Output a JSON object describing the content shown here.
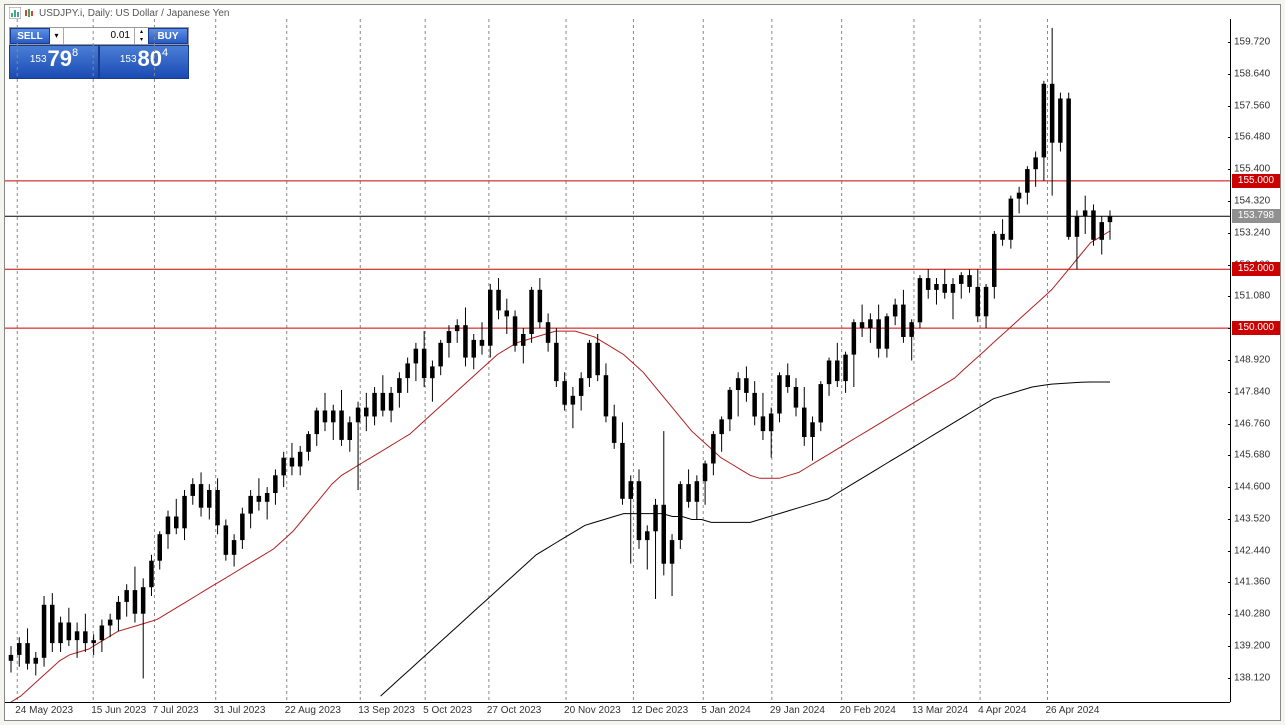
{
  "header": {
    "symbol_text": "USDJPY.i, Daily: US Dollar / Japanese Yen"
  },
  "trade_panel": {
    "sell_label": "SELL",
    "buy_label": "BUY",
    "lot_value": "0.01",
    "sell_price": {
      "whole": "153",
      "main": "79",
      "frac": "8"
    },
    "buy_price": {
      "whole": "153",
      "main": "80",
      "frac": "4"
    }
  },
  "chart": {
    "type": "candlestick",
    "background_color": "#ffffff",
    "axis_color": "#000000",
    "text_color": "#333333",
    "grid_dash": "3,3",
    "grid_color": "#888888",
    "y_min": 137.3,
    "y_max": 160.5,
    "y_ticks": [
      159.72,
      158.64,
      157.56,
      156.48,
      155.4,
      154.32,
      153.24,
      152.16,
      151.08,
      150.0,
      148.92,
      147.84,
      146.76,
      145.68,
      144.6,
      143.52,
      142.44,
      141.36,
      140.28,
      139.2,
      138.12
    ],
    "x_labels": [
      "24 May 2023",
      "15 Jun 2023",
      "7 Jul 2023",
      "31 Jul 2023",
      "22 Aug 2023",
      "13 Sep 2023",
      "5 Oct 2023",
      "27 Oct 2023",
      "20 Nov 2023",
      "12 Dec 2023",
      "5 Jan 2024",
      "29 Jan 2024",
      "20 Feb 2024",
      "13 Mar 2024",
      "4 Apr 2024",
      "26 Apr 2024"
    ],
    "x_positions_pct": [
      1.0,
      7.2,
      12.2,
      17.2,
      23.0,
      29.0,
      34.3,
      39.5,
      45.8,
      51.3,
      57.0,
      62.6,
      68.3,
      74.2,
      79.6,
      85.1
    ],
    "horizontal_lines": [
      {
        "value": 155.0,
        "color": "#cc0000",
        "label": "155.000",
        "label_bg": "#cc0000"
      },
      {
        "value": 152.0,
        "color": "#cc0000",
        "label": "152.000",
        "label_bg": "#cc0000"
      },
      {
        "value": 150.0,
        "color": "#cc0000",
        "label": "150.000",
        "label_bg": "#cc0000"
      }
    ],
    "current_price_line": {
      "value": 153.798,
      "color": "#000000",
      "label": "153.798",
      "label_bg": "#909090"
    },
    "ma_lines": [
      {
        "name": "ma-fast",
        "color": "#b02020",
        "width": 1,
        "points": [
          137.3,
          137.5,
          137.8,
          138.1,
          138.4,
          138.7,
          138.9,
          139.0,
          139.1,
          139.3,
          139.5,
          139.7,
          139.8,
          139.9,
          140.0,
          140.1,
          140.3,
          140.5,
          140.7,
          140.9,
          141.1,
          141.3,
          141.5,
          141.7,
          141.9,
          142.1,
          142.3,
          142.5,
          142.8,
          143.1,
          143.5,
          143.9,
          144.3,
          144.7,
          145.0,
          145.2,
          145.4,
          145.6,
          145.8,
          146.0,
          146.2,
          146.4,
          146.7,
          147.0,
          147.3,
          147.6,
          147.9,
          148.2,
          148.5,
          148.8,
          149.1,
          149.3,
          149.5,
          149.6,
          149.7,
          149.8,
          149.9,
          149.9,
          149.9,
          149.8,
          149.7,
          149.5,
          149.3,
          149.1,
          148.8,
          148.5,
          148.1,
          147.7,
          147.3,
          146.9,
          146.5,
          146.2,
          145.9,
          145.6,
          145.4,
          145.2,
          145.0,
          144.9,
          144.9,
          144.9,
          145.0,
          145.1,
          145.3,
          145.5,
          145.7,
          145.9,
          146.1,
          146.3,
          146.5,
          146.7,
          146.9,
          147.1,
          147.3,
          147.5,
          147.7,
          147.9,
          148.1,
          148.3,
          148.6,
          148.9,
          149.2,
          149.5,
          149.8,
          150.1,
          150.4,
          150.7,
          151.0,
          151.3,
          151.7,
          152.1,
          152.5,
          152.9,
          153.1,
          153.3
        ]
      },
      {
        "name": "ma-slow",
        "color": "#000000",
        "width": 1,
        "points": [
          null,
          null,
          null,
          null,
          null,
          null,
          null,
          null,
          null,
          null,
          null,
          null,
          null,
          null,
          null,
          null,
          null,
          null,
          null,
          null,
          null,
          null,
          null,
          null,
          null,
          null,
          null,
          null,
          null,
          null,
          null,
          null,
          null,
          null,
          null,
          null,
          null,
          null,
          137.5,
          137.8,
          138.1,
          138.4,
          138.7,
          139.0,
          139.3,
          139.6,
          139.9,
          140.2,
          140.5,
          140.8,
          141.1,
          141.4,
          141.7,
          142.0,
          142.3,
          142.5,
          142.7,
          142.9,
          143.1,
          143.3,
          143.4,
          143.5,
          143.6,
          143.7,
          143.7,
          143.7,
          143.7,
          143.7,
          143.6,
          143.6,
          143.5,
          143.5,
          143.4,
          143.4,
          143.4,
          143.4,
          143.4,
          143.5,
          143.6,
          143.7,
          143.8,
          143.9,
          144.0,
          144.1,
          144.2,
          144.4,
          144.6,
          144.8,
          145.0,
          145.2,
          145.4,
          145.6,
          145.8,
          146.0,
          146.2,
          146.4,
          146.6,
          146.8,
          147.0,
          147.2,
          147.4,
          147.6,
          147.7,
          147.8,
          147.9,
          148.0,
          148.05,
          148.1,
          148.12,
          148.14,
          148.16,
          148.17,
          148.17,
          148.17
        ]
      }
    ],
    "candle_color": "#000000",
    "candles": [
      {
        "o": 138.7,
        "h": 139.2,
        "l": 138.3,
        "c": 138.9
      },
      {
        "o": 138.9,
        "h": 139.5,
        "l": 138.5,
        "c": 139.3
      },
      {
        "o": 139.3,
        "h": 139.8,
        "l": 138.4,
        "c": 138.6
      },
      {
        "o": 138.6,
        "h": 139.0,
        "l": 138.2,
        "c": 138.8
      },
      {
        "o": 138.8,
        "h": 140.9,
        "l": 138.5,
        "c": 140.6
      },
      {
        "o": 140.6,
        "h": 141.0,
        "l": 139.0,
        "c": 139.3
      },
      {
        "o": 139.3,
        "h": 140.2,
        "l": 139.0,
        "c": 140.0
      },
      {
        "o": 140.0,
        "h": 140.5,
        "l": 139.2,
        "c": 139.4
      },
      {
        "o": 139.4,
        "h": 140.0,
        "l": 138.8,
        "c": 139.7
      },
      {
        "o": 139.7,
        "h": 140.3,
        "l": 139.0,
        "c": 139.3
      },
      {
        "o": 139.3,
        "h": 139.6,
        "l": 138.9,
        "c": 139.4
      },
      {
        "o": 139.4,
        "h": 140.1,
        "l": 139.0,
        "c": 139.9
      },
      {
        "o": 139.9,
        "h": 140.3,
        "l": 139.5,
        "c": 140.1
      },
      {
        "o": 140.1,
        "h": 140.9,
        "l": 139.7,
        "c": 140.7
      },
      {
        "o": 140.7,
        "h": 141.3,
        "l": 140.2,
        "c": 141.1
      },
      {
        "o": 141.1,
        "h": 141.9,
        "l": 140.0,
        "c": 140.3
      },
      {
        "o": 140.3,
        "h": 141.5,
        "l": 138.1,
        "c": 141.2
      },
      {
        "o": 141.2,
        "h": 142.3,
        "l": 140.9,
        "c": 142.1
      },
      {
        "o": 142.1,
        "h": 143.1,
        "l": 141.8,
        "c": 143.0
      },
      {
        "o": 143.0,
        "h": 143.8,
        "l": 142.5,
        "c": 143.6
      },
      {
        "o": 143.6,
        "h": 144.2,
        "l": 143.0,
        "c": 143.2
      },
      {
        "o": 143.2,
        "h": 144.5,
        "l": 142.8,
        "c": 144.3
      },
      {
        "o": 144.3,
        "h": 144.9,
        "l": 144.0,
        "c": 144.7
      },
      {
        "o": 144.7,
        "h": 145.1,
        "l": 143.6,
        "c": 143.9
      },
      {
        "o": 143.9,
        "h": 144.7,
        "l": 143.5,
        "c": 144.5
      },
      {
        "o": 144.5,
        "h": 144.9,
        "l": 143.0,
        "c": 143.3
      },
      {
        "o": 143.3,
        "h": 143.5,
        "l": 142.1,
        "c": 142.3
      },
      {
        "o": 142.3,
        "h": 143.0,
        "l": 141.9,
        "c": 142.8
      },
      {
        "o": 142.8,
        "h": 143.9,
        "l": 142.5,
        "c": 143.7
      },
      {
        "o": 143.7,
        "h": 144.5,
        "l": 143.2,
        "c": 144.3
      },
      {
        "o": 144.3,
        "h": 144.9,
        "l": 143.8,
        "c": 144.1
      },
      {
        "o": 144.1,
        "h": 144.6,
        "l": 143.5,
        "c": 144.4
      },
      {
        "o": 144.4,
        "h": 145.2,
        "l": 144.0,
        "c": 145.0
      },
      {
        "o": 145.0,
        "h": 145.8,
        "l": 144.6,
        "c": 145.6
      },
      {
        "o": 145.6,
        "h": 146.1,
        "l": 145.0,
        "c": 145.3
      },
      {
        "o": 145.3,
        "h": 146.0,
        "l": 145.0,
        "c": 145.8
      },
      {
        "o": 145.8,
        "h": 146.5,
        "l": 145.5,
        "c": 146.4
      },
      {
        "o": 146.4,
        "h": 147.3,
        "l": 146.0,
        "c": 147.2
      },
      {
        "o": 147.2,
        "h": 147.8,
        "l": 146.5,
        "c": 146.8
      },
      {
        "o": 146.8,
        "h": 147.4,
        "l": 146.2,
        "c": 147.2
      },
      {
        "o": 147.2,
        "h": 147.9,
        "l": 146.0,
        "c": 146.2
      },
      {
        "o": 146.2,
        "h": 147.0,
        "l": 145.8,
        "c": 146.8
      },
      {
        "o": 146.8,
        "h": 147.5,
        "l": 144.5,
        "c": 147.3
      },
      {
        "o": 147.3,
        "h": 147.8,
        "l": 146.5,
        "c": 147.0
      },
      {
        "o": 147.0,
        "h": 148.0,
        "l": 146.7,
        "c": 147.8
      },
      {
        "o": 147.8,
        "h": 148.4,
        "l": 147.0,
        "c": 147.2
      },
      {
        "o": 147.2,
        "h": 148.0,
        "l": 146.8,
        "c": 147.8
      },
      {
        "o": 147.8,
        "h": 148.5,
        "l": 147.3,
        "c": 148.3
      },
      {
        "o": 148.3,
        "h": 149.0,
        "l": 147.8,
        "c": 148.8
      },
      {
        "o": 148.8,
        "h": 149.5,
        "l": 148.2,
        "c": 149.3
      },
      {
        "o": 149.3,
        "h": 149.9,
        "l": 148.0,
        "c": 148.3
      },
      {
        "o": 148.3,
        "h": 148.9,
        "l": 147.5,
        "c": 148.7
      },
      {
        "o": 148.7,
        "h": 149.6,
        "l": 148.4,
        "c": 149.5
      },
      {
        "o": 149.5,
        "h": 150.1,
        "l": 149.0,
        "c": 149.9
      },
      {
        "o": 149.9,
        "h": 150.3,
        "l": 149.5,
        "c": 150.1
      },
      {
        "o": 150.1,
        "h": 150.7,
        "l": 148.7,
        "c": 149.0
      },
      {
        "o": 149.0,
        "h": 149.8,
        "l": 148.6,
        "c": 149.6
      },
      {
        "o": 149.6,
        "h": 150.2,
        "l": 149.1,
        "c": 149.4
      },
      {
        "o": 149.4,
        "h": 151.5,
        "l": 149.0,
        "c": 151.3
      },
      {
        "o": 151.3,
        "h": 151.7,
        "l": 150.3,
        "c": 150.6
      },
      {
        "o": 150.6,
        "h": 151.0,
        "l": 149.8,
        "c": 150.4
      },
      {
        "o": 150.4,
        "h": 150.6,
        "l": 149.2,
        "c": 149.4
      },
      {
        "o": 149.4,
        "h": 150.0,
        "l": 148.8,
        "c": 149.8
      },
      {
        "o": 149.8,
        "h": 151.4,
        "l": 149.5,
        "c": 151.3
      },
      {
        "o": 151.3,
        "h": 151.7,
        "l": 150.0,
        "c": 150.2
      },
      {
        "o": 150.2,
        "h": 150.5,
        "l": 149.2,
        "c": 149.5
      },
      {
        "o": 149.5,
        "h": 150.0,
        "l": 148.0,
        "c": 148.2
      },
      {
        "o": 148.2,
        "h": 148.5,
        "l": 147.2,
        "c": 147.4
      },
      {
        "o": 147.4,
        "h": 148.0,
        "l": 146.6,
        "c": 147.7
      },
      {
        "o": 147.7,
        "h": 148.5,
        "l": 147.2,
        "c": 148.3
      },
      {
        "o": 148.3,
        "h": 149.6,
        "l": 148.0,
        "c": 149.5
      },
      {
        "o": 149.5,
        "h": 149.8,
        "l": 148.2,
        "c": 148.4
      },
      {
        "o": 148.4,
        "h": 148.8,
        "l": 146.8,
        "c": 147.0
      },
      {
        "o": 147.0,
        "h": 147.4,
        "l": 145.9,
        "c": 146.1
      },
      {
        "o": 146.1,
        "h": 146.8,
        "l": 144.0,
        "c": 144.2
      },
      {
        "o": 144.2,
        "h": 145.0,
        "l": 142.0,
        "c": 144.8
      },
      {
        "o": 144.8,
        "h": 145.2,
        "l": 142.5,
        "c": 142.8
      },
      {
        "o": 142.8,
        "h": 143.3,
        "l": 141.8,
        "c": 143.1
      },
      {
        "o": 143.1,
        "h": 144.2,
        "l": 140.8,
        "c": 144.0
      },
      {
        "o": 144.0,
        "h": 146.5,
        "l": 141.6,
        "c": 142.0
      },
      {
        "o": 142.0,
        "h": 143.0,
        "l": 140.9,
        "c": 142.8
      },
      {
        "o": 142.8,
        "h": 144.8,
        "l": 142.5,
        "c": 144.7
      },
      {
        "o": 144.7,
        "h": 145.2,
        "l": 143.9,
        "c": 144.1
      },
      {
        "o": 144.1,
        "h": 145.0,
        "l": 143.5,
        "c": 144.8
      },
      {
        "o": 144.8,
        "h": 145.5,
        "l": 144.0,
        "c": 145.4
      },
      {
        "o": 145.4,
        "h": 146.5,
        "l": 145.0,
        "c": 146.4
      },
      {
        "o": 146.4,
        "h": 147.0,
        "l": 145.8,
        "c": 146.9
      },
      {
        "o": 146.9,
        "h": 148.0,
        "l": 146.5,
        "c": 147.9
      },
      {
        "o": 147.9,
        "h": 148.5,
        "l": 147.0,
        "c": 148.3
      },
      {
        "o": 148.3,
        "h": 148.7,
        "l": 147.5,
        "c": 147.8
      },
      {
        "o": 147.8,
        "h": 148.2,
        "l": 146.7,
        "c": 147.0
      },
      {
        "o": 147.0,
        "h": 147.8,
        "l": 146.2,
        "c": 146.5
      },
      {
        "o": 146.5,
        "h": 147.3,
        "l": 145.6,
        "c": 147.1
      },
      {
        "o": 147.1,
        "h": 148.5,
        "l": 146.8,
        "c": 148.4
      },
      {
        "o": 148.4,
        "h": 148.8,
        "l": 147.8,
        "c": 148.0
      },
      {
        "o": 148.0,
        "h": 148.3,
        "l": 147.0,
        "c": 147.3
      },
      {
        "o": 147.3,
        "h": 148.0,
        "l": 146.0,
        "c": 146.3
      },
      {
        "o": 146.3,
        "h": 147.0,
        "l": 145.5,
        "c": 146.8
      },
      {
        "o": 146.8,
        "h": 148.2,
        "l": 146.5,
        "c": 148.1
      },
      {
        "o": 148.1,
        "h": 149.0,
        "l": 147.7,
        "c": 148.9
      },
      {
        "o": 148.9,
        "h": 149.5,
        "l": 148.0,
        "c": 148.2
      },
      {
        "o": 148.2,
        "h": 149.2,
        "l": 147.8,
        "c": 149.1
      },
      {
        "o": 149.1,
        "h": 150.3,
        "l": 148.0,
        "c": 150.2
      },
      {
        "o": 150.2,
        "h": 150.8,
        "l": 149.7,
        "c": 150.0
      },
      {
        "o": 150.0,
        "h": 150.5,
        "l": 149.5,
        "c": 150.3
      },
      {
        "o": 150.3,
        "h": 150.8,
        "l": 149.0,
        "c": 149.3
      },
      {
        "o": 149.3,
        "h": 150.5,
        "l": 149.0,
        "c": 150.4
      },
      {
        "o": 150.4,
        "h": 151.0,
        "l": 150.1,
        "c": 150.8
      },
      {
        "o": 150.8,
        "h": 151.3,
        "l": 149.5,
        "c": 149.7
      },
      {
        "o": 149.7,
        "h": 150.3,
        "l": 148.9,
        "c": 150.2
      },
      {
        "o": 150.2,
        "h": 151.8,
        "l": 150.0,
        "c": 151.7
      },
      {
        "o": 151.7,
        "h": 152.0,
        "l": 151.0,
        "c": 151.3
      },
      {
        "o": 151.3,
        "h": 151.7,
        "l": 150.8,
        "c": 151.5
      },
      {
        "o": 151.5,
        "h": 152.0,
        "l": 151.0,
        "c": 151.2
      },
      {
        "o": 151.2,
        "h": 151.7,
        "l": 150.3,
        "c": 151.5
      },
      {
        "o": 151.5,
        "h": 151.9,
        "l": 151.0,
        "c": 151.8
      },
      {
        "o": 151.8,
        "h": 152.0,
        "l": 151.2,
        "c": 151.4
      },
      {
        "o": 151.4,
        "h": 152.0,
        "l": 150.2,
        "c": 150.4
      },
      {
        "o": 150.4,
        "h": 151.5,
        "l": 150.0,
        "c": 151.4
      },
      {
        "o": 151.4,
        "h": 153.3,
        "l": 151.0,
        "c": 153.2
      },
      {
        "o": 153.2,
        "h": 153.7,
        "l": 152.8,
        "c": 153.0
      },
      {
        "o": 153.0,
        "h": 154.5,
        "l": 152.7,
        "c": 154.4
      },
      {
        "o": 154.4,
        "h": 154.8,
        "l": 153.9,
        "c": 154.6
      },
      {
        "o": 154.6,
        "h": 155.5,
        "l": 154.2,
        "c": 155.4
      },
      {
        "o": 155.4,
        "h": 156.0,
        "l": 154.8,
        "c": 155.8
      },
      {
        "o": 155.8,
        "h": 158.4,
        "l": 155.0,
        "c": 158.3
      },
      {
        "o": 158.3,
        "h": 160.2,
        "l": 154.5,
        "c": 156.3
      },
      {
        "o": 156.3,
        "h": 158.0,
        "l": 156.0,
        "c": 157.8
      },
      {
        "o": 157.8,
        "h": 158.0,
        "l": 153.0,
        "c": 153.1
      },
      {
        "o": 153.1,
        "h": 154.0,
        "l": 152.0,
        "c": 153.8
      },
      {
        "o": 153.8,
        "h": 154.5,
        "l": 153.2,
        "c": 154.0
      },
      {
        "o": 154.0,
        "h": 154.2,
        "l": 152.8,
        "c": 153.0
      },
      {
        "o": 153.0,
        "h": 153.8,
        "l": 152.5,
        "c": 153.6
      },
      {
        "o": 153.6,
        "h": 154.0,
        "l": 153.0,
        "c": 153.8
      }
    ]
  }
}
